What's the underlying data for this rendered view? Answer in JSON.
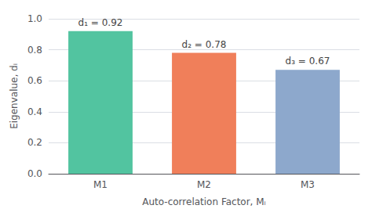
{
  "chart_data": {
    "type": "bar",
    "categories": [
      "M1",
      "M2",
      "M3"
    ],
    "values": [
      0.92,
      0.78,
      0.67
    ],
    "colors": [
      "#52c4a0",
      "#f07f5a",
      "#8da8cc"
    ],
    "data_labels": true,
    "value_labels": [
      "d₁ = 0.92",
      "d₂ = 0.78",
      "d₃ = 0.67"
    ],
    "xlabel": "Auto-correlation Factor, Mᵢ",
    "ylabel": "Eigenvalue, dᵢ",
    "ylim": [
      0.0,
      1.0
    ],
    "yticks": [
      {
        "value": 0.0,
        "label": "0.0"
      },
      0.2,
      0.4,
      0.6,
      0.8,
      {
        "value": 1.0,
        "label": "1.0"
      }
    ],
    "grid": true
  }
}
